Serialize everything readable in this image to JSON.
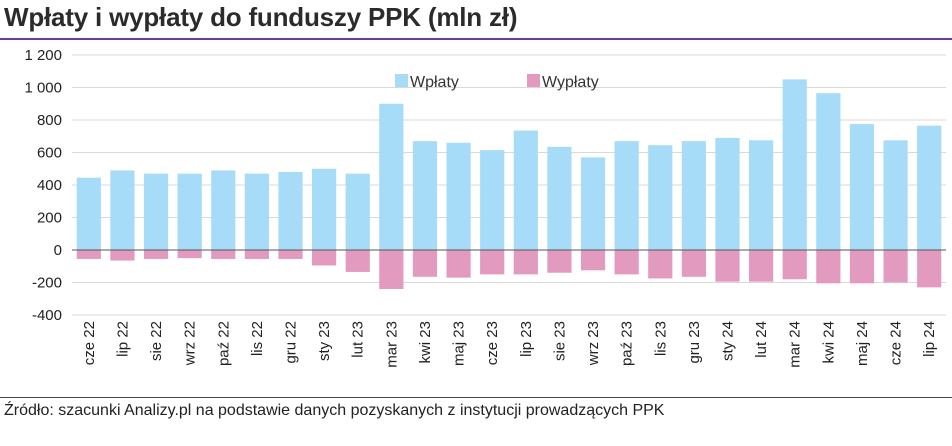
{
  "title": "Wpłaty i wypłaty do funduszy PPK (mln zł)",
  "source": "Źródło: szacunki Analizy.pl na podstawie danych pozyskanych z instytucji prowadzących PPK",
  "chart_data": {
    "type": "bar",
    "title": "Wpłaty i wypłaty do funduszy PPK (mln zł)",
    "xlabel": "",
    "ylabel": "",
    "ylim": [
      -400,
      1200
    ],
    "yticks": [
      1200,
      1000,
      800,
      600,
      400,
      200,
      0,
      -200,
      -400
    ],
    "ytick_labels": [
      "1 200",
      "1 000",
      "800",
      "600",
      "400",
      "200",
      "0",
      "-200",
      "-400"
    ],
    "grid": true,
    "legend_position": "top-center",
    "categories": [
      "cze 22",
      "lip 22",
      "sie 22",
      "wrz 22",
      "paź 22",
      "lis 22",
      "gru 22",
      "sty 23",
      "lut 23",
      "mar 23",
      "kwi 23",
      "maj 23",
      "cze 23",
      "lip 23",
      "sie 23",
      "wrz 23",
      "paź 23",
      "lis 23",
      "gru 23",
      "sty 24",
      "lut 24",
      "mar 24",
      "kwi 24",
      "maj 24",
      "cze 24",
      "lip 24"
    ],
    "series": [
      {
        "name": "Wpłaty",
        "color": "#a6dcf7",
        "values": [
          445,
          490,
          470,
          470,
          490,
          470,
          480,
          500,
          470,
          900,
          670,
          660,
          615,
          735,
          635,
          570,
          670,
          645,
          670,
          690,
          675,
          1050,
          965,
          775,
          675,
          765
        ]
      },
      {
        "name": "Wypłaty",
        "color": "#e29bbf",
        "values": [
          -55,
          -65,
          -55,
          -50,
          -55,
          -55,
          -55,
          -95,
          -135,
          -240,
          -165,
          -170,
          -150,
          -150,
          -140,
          -125,
          -150,
          -175,
          -165,
          -195,
          -195,
          -180,
          -205,
          -205,
          -200,
          -230
        ]
      }
    ]
  }
}
